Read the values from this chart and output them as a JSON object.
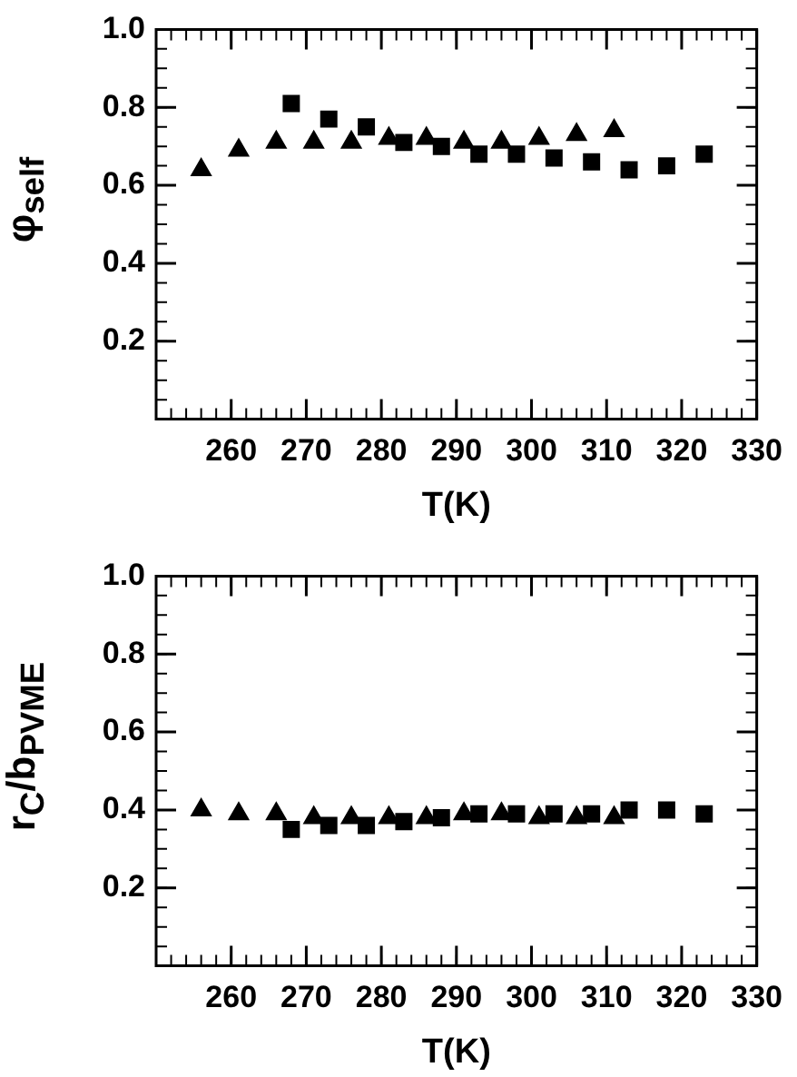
{
  "chart_data": [
    {
      "type": "scatter",
      "ylabel": "φ$_{self}$",
      "xlabel": "T(K)",
      "xlim": [
        250,
        330
      ],
      "xticks": [
        260,
        270,
        280,
        290,
        300,
        310,
        320,
        330
      ],
      "ylim": [
        0,
        1
      ],
      "yticks": [
        0.2,
        0.4,
        0.6,
        0.8,
        {
          "value": 1,
          "label": "1.0"
        }
      ],
      "grid": false,
      "legend": false,
      "series": [
        {
          "marker": "triangle",
          "color": "#000000",
          "x": [
            256,
            261,
            266,
            271,
            276,
            281,
            286,
            291,
            296,
            301,
            306,
            311
          ],
          "values": [
            0.64,
            0.69,
            0.71,
            0.71,
            0.71,
            0.72,
            0.72,
            0.71,
            0.71,
            0.72,
            0.73,
            0.74
          ]
        },
        {
          "marker": "square",
          "color": "#000000",
          "x": [
            268,
            273,
            278,
            283,
            288,
            293,
            298,
            303,
            308,
            313,
            318,
            323
          ],
          "values": [
            0.81,
            0.77,
            0.75,
            0.71,
            0.7,
            0.68,
            0.68,
            0.67,
            0.66,
            0.64,
            0.65,
            0.68
          ]
        }
      ]
    },
    {
      "type": "scatter",
      "ylabel": "r$_{C}$/b$_{PVME}$",
      "xlabel": "T(K)",
      "xlim": [
        250,
        330
      ],
      "xticks": [
        260,
        270,
        280,
        290,
        300,
        310,
        320,
        330
      ],
      "ylim": [
        0,
        1
      ],
      "yticks": [
        0.2,
        0.4,
        0.6,
        0.8,
        {
          "value": 1,
          "label": "1.0"
        }
      ],
      "grid": false,
      "legend": false,
      "series": [
        {
          "marker": "triangle",
          "color": "#000000",
          "x": [
            256,
            261,
            266,
            271,
            276,
            281,
            286,
            291,
            296,
            301,
            306,
            311
          ],
          "values": [
            0.4,
            0.39,
            0.39,
            0.38,
            0.38,
            0.38,
            0.38,
            0.39,
            0.39,
            0.38,
            0.38,
            0.38
          ]
        },
        {
          "marker": "square",
          "color": "#000000",
          "x": [
            268,
            273,
            278,
            283,
            288,
            293,
            298,
            303,
            308,
            313,
            318,
            323
          ],
          "values": [
            0.35,
            0.36,
            0.36,
            0.37,
            0.38,
            0.39,
            0.39,
            0.39,
            0.39,
            0.4,
            0.4,
            0.39
          ]
        }
      ]
    }
  ]
}
